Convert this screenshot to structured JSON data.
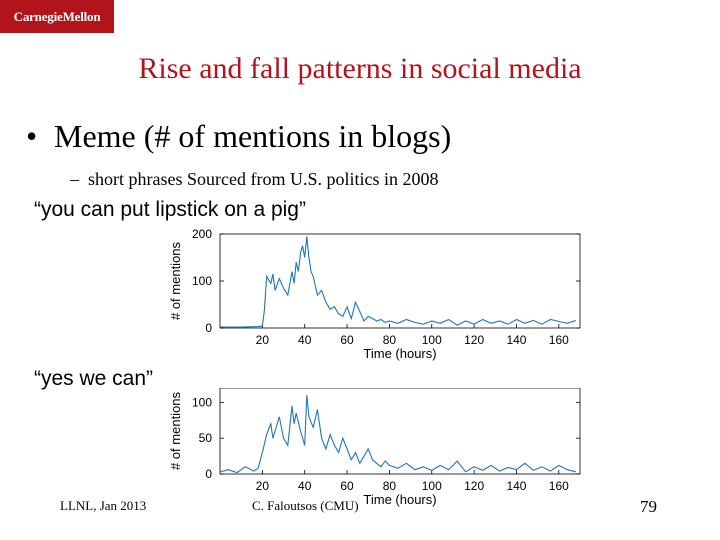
{
  "header": {
    "logo_text": "CarnegieMellon"
  },
  "slide": {
    "title": "Rise and fall patterns in social media",
    "bullet": "Meme (# of mentions in blogs)",
    "subbullet": "short phrases Sourced from U.S. politics in 2008",
    "quote1": "“you can put lipstick on a pig”",
    "quote2": "“yes we can”"
  },
  "footer": {
    "left": "LLNL, Jan 2013",
    "center": "C. Faloutsos (CMU)",
    "page": "79"
  },
  "colors": {
    "accent": "#b1151b",
    "line": "#1f77b4"
  },
  "chart_data": [
    {
      "type": "line",
      "xlabel": "Time (hours)",
      "ylabel": "# of mentions",
      "xlim": [
        0,
        170
      ],
      "ylim": [
        0,
        200
      ],
      "xticks": [
        20,
        40,
        60,
        80,
        100,
        120,
        140,
        160
      ],
      "yticks": [
        0,
        100,
        200
      ],
      "series": [
        {
          "x": [
            0,
            10,
            18,
            20,
            21,
            22,
            24,
            25,
            26,
            28,
            30,
            32,
            34,
            35,
            36,
            37,
            38,
            39,
            40,
            41,
            42,
            43,
            44,
            46,
            48,
            50,
            52,
            54,
            56,
            58,
            60,
            62,
            64,
            66,
            68,
            70,
            72,
            74,
            76,
            78,
            80,
            84,
            88,
            92,
            96,
            100,
            104,
            108,
            112,
            116,
            120,
            124,
            128,
            132,
            136,
            140,
            144,
            148,
            152,
            156,
            160,
            164,
            168
          ],
          "y": [
            2,
            2,
            3,
            4,
            40,
            110,
            95,
            115,
            80,
            105,
            85,
            70,
            120,
            95,
            140,
            120,
            160,
            175,
            150,
            195,
            150,
            120,
            110,
            70,
            80,
            55,
            40,
            45,
            30,
            25,
            45,
            20,
            55,
            35,
            15,
            25,
            20,
            15,
            18,
            12,
            15,
            10,
            18,
            12,
            8,
            15,
            10,
            18,
            6,
            15,
            8,
            18,
            10,
            15,
            8,
            18,
            10,
            16,
            8,
            18,
            14,
            10,
            16
          ]
        }
      ]
    },
    {
      "type": "line",
      "xlabel": "Time (hours)",
      "ylabel": "# of mentions",
      "xlim": [
        0,
        170
      ],
      "ylim": [
        0,
        120
      ],
      "xticks": [
        20,
        40,
        60,
        80,
        100,
        120,
        140,
        160
      ],
      "yticks": [
        0,
        50,
        100
      ],
      "series": [
        {
          "x": [
            0,
            4,
            8,
            12,
            16,
            18,
            20,
            22,
            24,
            25,
            26,
            28,
            30,
            32,
            34,
            35,
            36,
            38,
            40,
            41,
            42,
            44,
            46,
            48,
            50,
            52,
            54,
            56,
            58,
            60,
            62,
            64,
            66,
            68,
            70,
            72,
            74,
            76,
            78,
            80,
            84,
            88,
            92,
            96,
            100,
            104,
            108,
            112,
            116,
            120,
            124,
            128,
            132,
            136,
            140,
            144,
            148,
            152,
            156,
            160,
            164,
            168
          ],
          "y": [
            3,
            6,
            2,
            10,
            4,
            8,
            30,
            55,
            70,
            50,
            60,
            80,
            50,
            40,
            95,
            70,
            85,
            60,
            40,
            110,
            80,
            65,
            90,
            50,
            35,
            55,
            40,
            30,
            50,
            35,
            20,
            30,
            15,
            25,
            35,
            20,
            15,
            10,
            18,
            12,
            8,
            15,
            6,
            10,
            5,
            12,
            6,
            18,
            3,
            10,
            5,
            12,
            4,
            9,
            6,
            15,
            5,
            10,
            4,
            12,
            6,
            3
          ]
        }
      ]
    }
  ]
}
